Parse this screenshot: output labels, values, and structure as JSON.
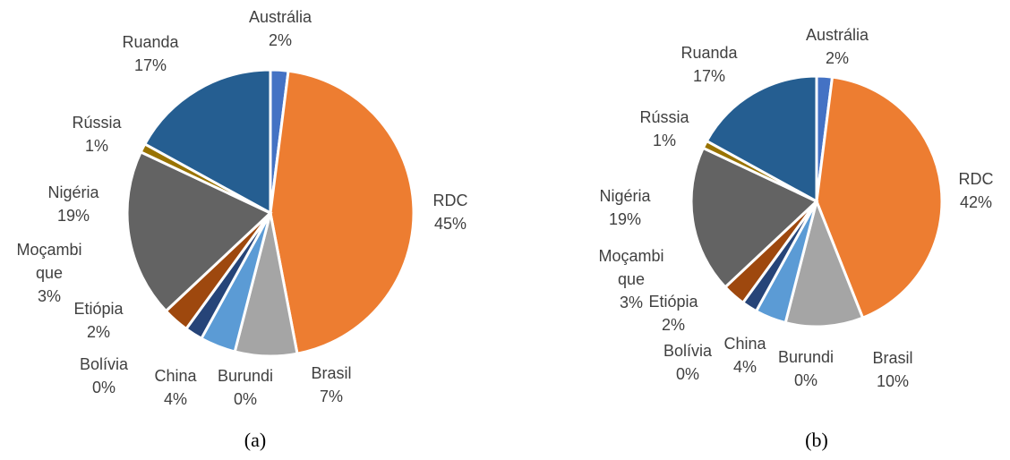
{
  "chart_data": [
    {
      "type": "pie",
      "caption": "(a)",
      "categories": [
        "Austrália",
        "RDC",
        "Brasil",
        "Burundi",
        "China",
        "Bolívia",
        "Etiópia",
        "Moçambique",
        "Nigéria",
        "Rússia",
        "Ruanda"
      ],
      "values": [
        2,
        45,
        7,
        0,
        4,
        0,
        2,
        3,
        19,
        1,
        17
      ],
      "value_labels": [
        "2%",
        "45%",
        "7%",
        "0%",
        "4%",
        "0%",
        "2%",
        "3%",
        "19%",
        "1%",
        "17%"
      ],
      "colors": [
        "#4472c4",
        "#ed7d31",
        "#a5a5a5",
        "#ffc000",
        "#5b9bd5",
        "#70ad47",
        "#264478",
        "#9e480e",
        "#636363",
        "#997300",
        "#255e91"
      ]
    },
    {
      "type": "pie",
      "caption": "(b)",
      "categories": [
        "Austrália",
        "RDC",
        "Brasil",
        "Burundi",
        "China",
        "Bolívia",
        "Etiópia",
        "Moçambique",
        "Nigéria",
        "Rússia",
        "Ruanda"
      ],
      "values": [
        2,
        42,
        10,
        0,
        4,
        0,
        2,
        3,
        19,
        1,
        17
      ],
      "value_labels": [
        "2%",
        "42%",
        "10%",
        "0%",
        "4%",
        "0%",
        "2%",
        "3%",
        "19%",
        "1%",
        "17%"
      ],
      "colors": [
        "#4472c4",
        "#ed7d31",
        "#a5a5a5",
        "#ffc000",
        "#5b9bd5",
        "#70ad47",
        "#264478",
        "#9e480e",
        "#636363",
        "#997300",
        "#255e91"
      ]
    }
  ]
}
